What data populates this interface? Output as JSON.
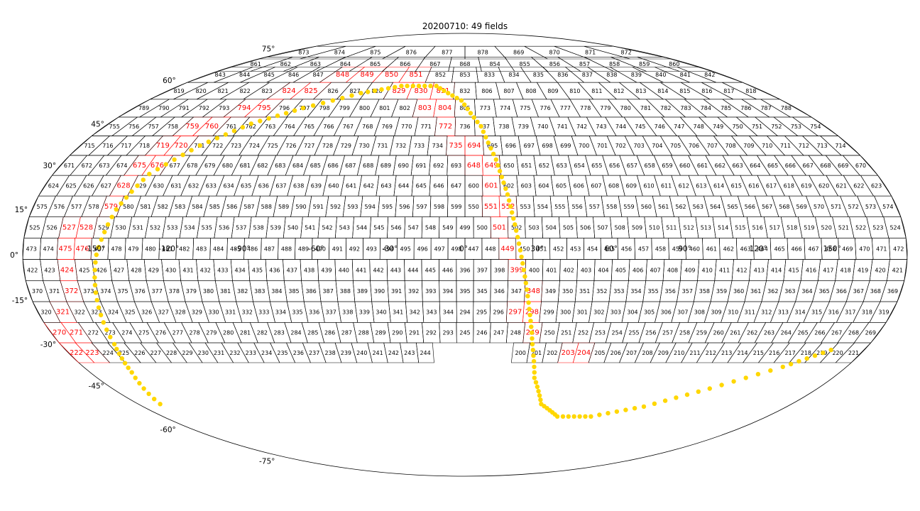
{
  "title": "20200710: 49 fields",
  "projection": "mollweide",
  "colors": {
    "field_outline": "#000000",
    "highlight": "#ff0000",
    "trajectory": "#ffd700",
    "background": "#ffffff"
  },
  "latitude_labels": [
    "75°",
    "60°",
    "45°",
    "30°",
    "15°",
    "0°",
    "-15°",
    "-30°",
    "-45°",
    "-60°",
    "-75°"
  ],
  "longitude_labels": [
    "-150°",
    "-120°",
    "-90°",
    "-60°",
    "-30°",
    "0°",
    "30°",
    "60°",
    "90°",
    "120°",
    "150°"
  ],
  "highlighted_fields": [
    "223",
    "222",
    "271",
    "270",
    "321",
    "372",
    "424",
    "475",
    "476",
    "527",
    "528",
    "579",
    "628",
    "675",
    "676",
    "719",
    "720",
    "759",
    "760",
    "794",
    "795",
    "824",
    "825",
    "848",
    "849",
    "850",
    "851",
    "829",
    "830",
    "831",
    "803",
    "804",
    "772",
    "735",
    "694",
    "648",
    "649",
    "601",
    "551",
    "552",
    "501",
    "449",
    "399",
    "348",
    "297",
    "298",
    "249",
    "203",
    "204"
  ],
  "field_rows": [
    {
      "lat": 76,
      "fields": [
        "873",
        "874",
        "875",
        "876",
        "877",
        "878",
        "869",
        "870",
        "871",
        "872"
      ]
    },
    {
      "lat": 70,
      "fields": [
        "861",
        "862",
        "863",
        "864",
        "865",
        "866",
        "867",
        "868",
        "854",
        "855",
        "856",
        "857",
        "858",
        "859",
        "860"
      ]
    },
    {
      "lat": 65,
      "fields": [
        "843",
        "844",
        "845",
        "846",
        "847",
        "848",
        "849",
        "850",
        "851",
        "852",
        "853",
        "833",
        "834",
        "835",
        "836",
        "837",
        "838",
        "839",
        "840",
        "841",
        "842"
      ]
    },
    {
      "lat": 58,
      "fields": [
        "819",
        "820",
        "821",
        "822",
        "823",
        "824",
        "825",
        "826",
        "827",
        "828",
        "829",
        "830",
        "831",
        "832",
        "806",
        "807",
        "808",
        "809",
        "810",
        "811",
        "812",
        "813",
        "814",
        "815",
        "816",
        "817",
        "818"
      ]
    },
    {
      "lat": 51,
      "fields": [
        "789",
        "790",
        "791",
        "792",
        "793",
        "794",
        "795",
        "796",
        "797",
        "798",
        "799",
        "800",
        "801",
        "802",
        "803",
        "804",
        "805",
        "773",
        "774",
        "775",
        "776",
        "777",
        "778",
        "779",
        "780",
        "781",
        "782",
        "783",
        "784",
        "785",
        "786",
        "787",
        "788"
      ]
    },
    {
      "lat": 44,
      "fields": [
        "755",
        "756",
        "757",
        "758",
        "759",
        "760",
        "761",
        "762",
        "763",
        "764",
        "765",
        "766",
        "767",
        "768",
        "769",
        "770",
        "771",
        "772",
        "736",
        "737",
        "738",
        "739",
        "740",
        "741",
        "742",
        "743",
        "744",
        "745",
        "746",
        "747",
        "748",
        "749",
        "750",
        "751",
        "752",
        "753",
        "754"
      ]
    },
    {
      "lat": 37,
      "fields": [
        "715",
        "716",
        "717",
        "718",
        "719",
        "720",
        "721",
        "722",
        "723",
        "724",
        "725",
        "726",
        "727",
        "728",
        "729",
        "730",
        "731",
        "732",
        "733",
        "734",
        "735",
        "694",
        "695",
        "696",
        "697",
        "698",
        "699",
        "700",
        "701",
        "702",
        "703",
        "704",
        "705",
        "706",
        "707",
        "708",
        "709",
        "710",
        "711",
        "712",
        "713",
        "714"
      ]
    },
    {
      "lat": 30,
      "fields": [
        "671",
        "672",
        "673",
        "674",
        "675",
        "676",
        "677",
        "678",
        "679",
        "680",
        "681",
        "682",
        "683",
        "684",
        "685",
        "686",
        "687",
        "688",
        "689",
        "690",
        "691",
        "692",
        "693",
        "648",
        "649",
        "650",
        "651",
        "652",
        "653",
        "654",
        "655",
        "656",
        "657",
        "658",
        "659",
        "660",
        "661",
        "662",
        "663",
        "664",
        "665",
        "666",
        "667",
        "668",
        "669",
        "670"
      ]
    },
    {
      "lat": 23,
      "fields": [
        "624",
        "625",
        "626",
        "627",
        "628",
        "629",
        "630",
        "631",
        "632",
        "633",
        "634",
        "635",
        "636",
        "637",
        "638",
        "639",
        "640",
        "641",
        "642",
        "643",
        "644",
        "645",
        "646",
        "647",
        "600",
        "601",
        "602",
        "603",
        "604",
        "605",
        "606",
        "607",
        "608",
        "609",
        "610",
        "611",
        "612",
        "613",
        "614",
        "615",
        "616",
        "617",
        "618",
        "619",
        "620",
        "621",
        "622",
        "623"
      ]
    },
    {
      "lat": 16,
      "fields": [
        "575",
        "576",
        "577",
        "578",
        "579",
        "580",
        "581",
        "582",
        "583",
        "584",
        "585",
        "586",
        "587",
        "588",
        "589",
        "590",
        "591",
        "592",
        "593",
        "594",
        "595",
        "596",
        "597",
        "598",
        "599",
        "550",
        "551",
        "552",
        "553",
        "554",
        "555",
        "556",
        "557",
        "558",
        "559",
        "560",
        "561",
        "562",
        "563",
        "564",
        "565",
        "566",
        "567",
        "568",
        "569",
        "570",
        "571",
        "572",
        "573",
        "574"
      ]
    },
    {
      "lat": 9,
      "fields": [
        "525",
        "526",
        "527",
        "528",
        "529",
        "530",
        "531",
        "532",
        "533",
        "534",
        "535",
        "536",
        "537",
        "538",
        "539",
        "540",
        "541",
        "542",
        "543",
        "544",
        "545",
        "546",
        "547",
        "548",
        "549",
        "499",
        "500",
        "501",
        "502",
        "503",
        "504",
        "505",
        "506",
        "507",
        "508",
        "509",
        "510",
        "511",
        "512",
        "513",
        "514",
        "515",
        "516",
        "517",
        "518",
        "519",
        "520",
        "521",
        "522",
        "523",
        "524"
      ]
    },
    {
      "lat": 2,
      "fields": [
        "473",
        "474",
        "475",
        "476",
        "477",
        "478",
        "479",
        "480",
        "481",
        "482",
        "483",
        "484",
        "485",
        "486",
        "487",
        "488",
        "489",
        "490",
        "491",
        "492",
        "493",
        "494",
        "495",
        "496",
        "497",
        "498",
        "447",
        "448",
        "449",
        "450",
        "451",
        "452",
        "453",
        "454",
        "455",
        "456",
        "457",
        "458",
        "459",
        "460",
        "461",
        "462",
        "463",
        "464",
        "465",
        "466",
        "467",
        "468",
        "469",
        "470",
        "471",
        "472"
      ]
    },
    {
      "lat": -5,
      "fields": [
        "422",
        "423",
        "424",
        "425",
        "426",
        "427",
        "428",
        "429",
        "430",
        "431",
        "432",
        "433",
        "434",
        "435",
        "436",
        "437",
        "438",
        "439",
        "440",
        "441",
        "442",
        "443",
        "444",
        "445",
        "446",
        "396",
        "397",
        "398",
        "399",
        "400",
        "401",
        "402",
        "403",
        "404",
        "405",
        "406",
        "407",
        "408",
        "409",
        "410",
        "411",
        "412",
        "413",
        "414",
        "415",
        "416",
        "417",
        "418",
        "419",
        "420",
        "421"
      ]
    },
    {
      "lat": -12,
      "fields": [
        "370",
        "371",
        "372",
        "373",
        "374",
        "375",
        "376",
        "377",
        "378",
        "379",
        "380",
        "381",
        "382",
        "383",
        "384",
        "385",
        "386",
        "387",
        "388",
        "389",
        "390",
        "391",
        "392",
        "393",
        "394",
        "395",
        "345",
        "346",
        "347",
        "348",
        "349",
        "350",
        "351",
        "352",
        "353",
        "354",
        "355",
        "356",
        "357",
        "358",
        "359",
        "360",
        "361",
        "362",
        "363",
        "364",
        "365",
        "366",
        "367",
        "368",
        "369"
      ]
    },
    {
      "lat": -19,
      "fields": [
        "320",
        "321",
        "322",
        "323",
        "324",
        "325",
        "326",
        "327",
        "328",
        "329",
        "330",
        "331",
        "332",
        "333",
        "334",
        "335",
        "336",
        "337",
        "338",
        "339",
        "340",
        "341",
        "342",
        "343",
        "344",
        "294",
        "295",
        "296",
        "297",
        "298",
        "299",
        "300",
        "301",
        "302",
        "303",
        "304",
        "305",
        "306",
        "307",
        "308",
        "309",
        "310",
        "311",
        "312",
        "313",
        "314",
        "315",
        "316",
        "317",
        "318",
        "319"
      ]
    },
    {
      "lat": -26,
      "fields": [
        "270",
        "271",
        "272",
        "273",
        "274",
        "275",
        "276",
        "277",
        "278",
        "279",
        "280",
        "281",
        "282",
        "283",
        "284",
        "285",
        "286",
        "287",
        "288",
        "289",
        "290",
        "291",
        "292",
        "293",
        "245",
        "246",
        "247",
        "248",
        "249",
        "250",
        "251",
        "252",
        "253",
        "254",
        "255",
        "256",
        "257",
        "258",
        "259",
        "260",
        "261",
        "262",
        "263",
        "264",
        "265",
        "266",
        "267",
        "268",
        "269"
      ]
    },
    {
      "lat": -33,
      "fields": [
        "222",
        "223",
        "224",
        "225",
        "226",
        "227",
        "228",
        "229",
        "230",
        "231",
        "232",
        "233",
        "234",
        "235",
        "236",
        "237",
        "238",
        "239",
        "240",
        "241",
        "242",
        "243",
        "244",
        "200",
        "201",
        "202",
        "203",
        "204",
        "205",
        "206",
        "207",
        "208",
        "209",
        "210",
        "211",
        "212",
        "213",
        "214",
        "215",
        "216",
        "217",
        "218",
        "219",
        "220",
        "221"
      ]
    }
  ],
  "gap_rows": [
    {
      "lat": -33,
      "after_field": "244",
      "gap_deg": 36
    }
  ],
  "trajectory": [
    {
      "lon": -168,
      "lat": -52
    },
    {
      "lon": -160,
      "lat": -40
    },
    {
      "lon": -156,
      "lat": -30
    },
    {
      "lon": -153,
      "lat": -15
    },
    {
      "lon": -150,
      "lat": 0
    },
    {
      "lon": -145,
      "lat": 15
    },
    {
      "lon": -138,
      "lat": 27
    },
    {
      "lon": -124,
      "lat": 37
    },
    {
      "lon": -108,
      "lat": 45
    },
    {
      "lon": -88,
      "lat": 51
    },
    {
      "lon": -62,
      "lat": 57
    },
    {
      "lon": -40,
      "lat": 60
    },
    {
      "lon": -18,
      "lat": 60
    },
    {
      "lon": -2,
      "lat": 54
    },
    {
      "lon": 8,
      "lat": 44
    },
    {
      "lon": 14,
      "lat": 32
    },
    {
      "lon": 18,
      "lat": 20
    },
    {
      "lon": 21,
      "lat": 8
    },
    {
      "lon": 24,
      "lat": -5
    },
    {
      "lon": 27,
      "lat": -18
    },
    {
      "lon": 30,
      "lat": -30
    },
    {
      "lon": 34,
      "lat": -42
    },
    {
      "lon": 42,
      "lat": -52
    },
    {
      "lon": 55,
      "lat": -57
    },
    {
      "lon": 75,
      "lat": -57
    },
    {
      "lon": 100,
      "lat": -53
    },
    {
      "lon": 125,
      "lat": -46
    },
    {
      "lon": 150,
      "lat": -38
    },
    {
      "lon": 165,
      "lat": -32
    }
  ]
}
